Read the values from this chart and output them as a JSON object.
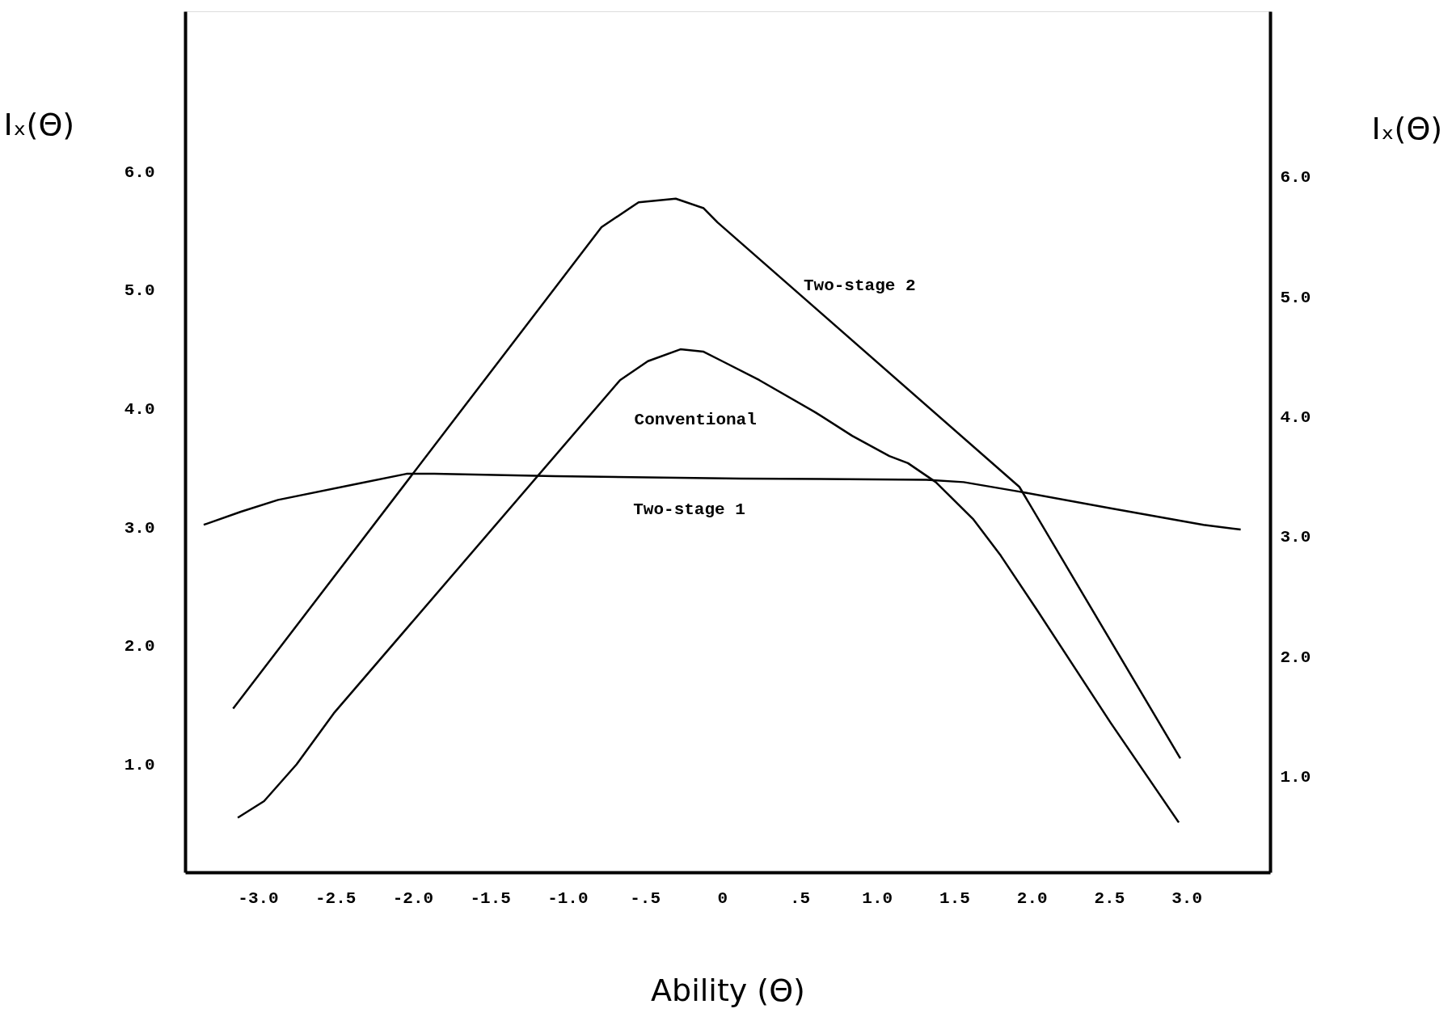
{
  "chart_data": {
    "type": "line",
    "xlabel": "Ability (Θ)",
    "ylabel": "Iₓ(Θ)",
    "y2label": "Iₓ(Θ)",
    "xlim": [
      -3.47,
      3.54
    ],
    "ylim": [
      0.09,
      7.35
    ],
    "y2lim": [
      0.2,
      7.38
    ],
    "xticks": [
      {
        "value": -3,
        "label": "-3.0"
      },
      {
        "value": -2.5,
        "label": "-2.5"
      },
      {
        "value": -2,
        "label": "-2.0"
      },
      {
        "value": -1.5,
        "label": "-1.5"
      },
      {
        "value": -1,
        "label": "-1.0"
      },
      {
        "value": -0.5,
        "label": "-.5"
      },
      {
        "value": 0,
        "label": "0"
      },
      {
        "value": 0.5,
        "label": ".5"
      },
      {
        "value": 1,
        "label": "1.0"
      },
      {
        "value": 1.5,
        "label": "1.5"
      },
      {
        "value": 2,
        "label": "2.0"
      },
      {
        "value": 2.5,
        "label": "2.5"
      },
      {
        "value": 3,
        "label": "3.0"
      }
    ],
    "yticks": [
      {
        "value": 1,
        "label": "1.0"
      },
      {
        "value": 2,
        "label": "2.0"
      },
      {
        "value": 3,
        "label": "3.0"
      },
      {
        "value": 4,
        "label": "4.0"
      },
      {
        "value": 5,
        "label": "5.0"
      },
      {
        "value": 6,
        "label": "6.0"
      }
    ],
    "y2ticks": [
      {
        "value": 1,
        "label": "1.0"
      },
      {
        "value": 2,
        "label": "2.0"
      },
      {
        "value": 3,
        "label": "3.0"
      },
      {
        "value": 4,
        "label": "4.0"
      },
      {
        "value": 5,
        "label": "5.0"
      },
      {
        "value": 6,
        "label": "6.0"
      }
    ],
    "grid": false,
    "marker": "none",
    "line_style": "solid",
    "series": [
      {
        "color": "#000000",
        "x": [
          -3.16,
          -0.78,
          -0.54,
          -0.3,
          -0.12,
          -0.03,
          1.92,
          2.96
        ],
        "values": [
          1.47,
          5.53,
          5.74,
          5.77,
          5.69,
          5.57,
          3.34,
          1.05
        ]
      },
      {
        "color": "#000000",
        "x": [
          -3.13,
          -2.96,
          -2.75,
          -2.51,
          -0.66,
          -0.48,
          -0.27,
          -0.12,
          0,
          0.24,
          0.6,
          0.84,
          1.08,
          1.2,
          1.38,
          1.62,
          1.8,
          2.04,
          2.51,
          2.95
        ],
        "values": [
          0.55,
          0.69,
          1.0,
          1.43,
          4.24,
          4.4,
          4.5,
          4.48,
          4.4,
          4.24,
          3.97,
          3.77,
          3.6,
          3.54,
          3.38,
          3.07,
          2.76,
          2.29,
          1.35,
          0.51
        ]
      },
      {
        "color": "#000000",
        "x": [
          -3.35,
          -3.11,
          -2.87,
          -2.34,
          -2.04,
          -1.86,
          -1.08,
          0.12,
          1.32,
          1.56,
          1.92,
          2.51,
          3.11,
          3.35
        ],
        "values": [
          3.02,
          3.13,
          3.23,
          3.37,
          3.45,
          3.45,
          3.43,
          3.41,
          3.4,
          3.38,
          3.3,
          3.16,
          3.02,
          2.98
        ]
      }
    ],
    "annotations": [
      "Two-stage 2",
      "Conventional",
      "Two-stage 1"
    ]
  }
}
